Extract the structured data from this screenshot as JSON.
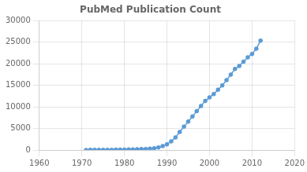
{
  "chart_data": {
    "type": "line",
    "title": "PubMed Publication Count",
    "x": [
      1971,
      1972,
      1973,
      1974,
      1975,
      1976,
      1977,
      1978,
      1979,
      1980,
      1981,
      1982,
      1983,
      1984,
      1985,
      1986,
      1987,
      1988,
      1989,
      1990,
      1991,
      1992,
      1993,
      1994,
      1995,
      1996,
      1997,
      1998,
      1999,
      2000,
      2001,
      2002,
      2003,
      2004,
      2005,
      2006,
      2007,
      2008,
      2009,
      2010,
      2011,
      2012
    ],
    "values": [
      20,
      30,
      35,
      40,
      50,
      55,
      65,
      75,
      90,
      110,
      130,
      150,
      180,
      210,
      250,
      300,
      400,
      600,
      900,
      1300,
      2000,
      2900,
      4200,
      5400,
      6600,
      7800,
      9000,
      10200,
      11400,
      12200,
      13000,
      14000,
      15000,
      16200,
      17500,
      18800,
      19500,
      20500,
      21500,
      22300,
      23500,
      25400
    ],
    "color": "#5B9BD5",
    "marker": "circle",
    "xlim": [
      1960,
      2020
    ],
    "xticks": [
      1960,
      1970,
      1980,
      1990,
      2000,
      2010,
      2020
    ],
    "ylim": [
      0,
      30000
    ],
    "yticks": [
      0,
      5000,
      10000,
      15000,
      20000,
      25000,
      30000
    ],
    "grid": true
  }
}
